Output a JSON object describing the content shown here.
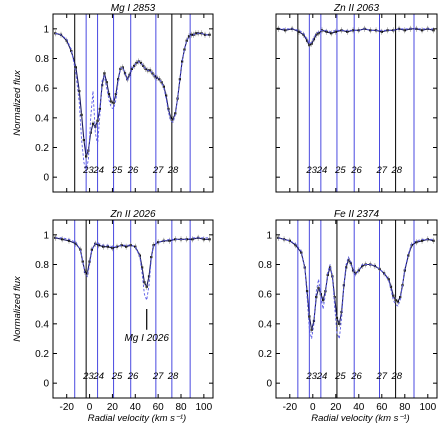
{
  "chart_data": [
    {
      "type": "line",
      "title": "Mg I 2853",
      "ylabel": "Normalized flux",
      "xlabel": "",
      "xlim": [
        -32,
        108
      ],
      "ylim": [
        -0.1,
        1.1
      ],
      "xticks": [],
      "yticks": [
        0,
        0.2,
        0.4,
        0.6,
        0.8,
        1
      ],
      "ytick_labels": [
        "0",
        "0.2",
        "0.4",
        "0.6",
        "0.8",
        "1"
      ],
      "component_lines": [
        {
          "x": -13,
          "color": "#000000"
        },
        {
          "x": -3,
          "color": "#4a4ae0"
        },
        {
          "x": 7,
          "color": "#4a4ae0"
        },
        {
          "x": 21,
          "color": "#4a4ae0"
        },
        {
          "x": 36,
          "color": "#4a4ae0"
        },
        {
          "x": 58,
          "color": "#4a4ae0"
        },
        {
          "x": 72,
          "color": "#000000"
        },
        {
          "x": 88,
          "color": "#4a4ae0"
        }
      ],
      "component_labels": [
        {
          "x": -1,
          "label": "23"
        },
        {
          "x": 8,
          "label": "24"
        },
        {
          "x": 24,
          "label": "25"
        },
        {
          "x": 38,
          "label": "26"
        },
        {
          "x": 60,
          "label": "27"
        },
        {
          "x": 73,
          "label": "28"
        }
      ],
      "component_label_y": 0.05,
      "annotation": null,
      "series": [
        {
          "role": "data",
          "x": [
            -30,
            -25,
            -20,
            -16,
            -12,
            -9,
            -7,
            -5,
            -3,
            -1,
            1,
            3,
            5,
            7,
            9,
            11,
            13,
            15,
            17,
            19,
            21,
            23,
            25,
            27,
            29,
            31,
            33,
            35,
            37,
            39,
            41,
            43,
            45,
            47,
            49,
            51,
            53,
            55,
            57,
            59,
            61,
            63,
            65,
            67,
            69,
            71,
            73,
            75,
            77,
            79,
            81,
            83,
            85,
            87,
            89,
            91,
            93,
            95,
            98,
            101,
            105
          ],
          "y": [
            0.97,
            0.96,
            0.92,
            0.85,
            0.74,
            0.58,
            0.42,
            0.25,
            0.14,
            0.18,
            0.3,
            0.36,
            0.34,
            0.38,
            0.46,
            0.62,
            0.7,
            0.64,
            0.56,
            0.51,
            0.5,
            0.56,
            0.66,
            0.73,
            0.74,
            0.7,
            0.66,
            0.69,
            0.73,
            0.75,
            0.77,
            0.78,
            0.77,
            0.75,
            0.73,
            0.72,
            0.72,
            0.7,
            0.68,
            0.67,
            0.66,
            0.64,
            0.61,
            0.55,
            0.46,
            0.4,
            0.39,
            0.43,
            0.53,
            0.66,
            0.78,
            0.86,
            0.92,
            0.95,
            0.96,
            0.96,
            0.97,
            0.97,
            0.97,
            0.96,
            0.96
          ]
        },
        {
          "role": "model",
          "x": [
            -30,
            -25,
            -20,
            -16,
            -12,
            -9,
            -7,
            -5,
            -3,
            -1,
            1,
            3,
            5,
            7,
            9,
            11,
            13,
            15,
            17,
            19,
            21,
            23,
            25,
            27,
            29,
            31,
            33,
            35,
            37,
            39,
            41,
            43,
            45,
            47,
            49,
            51,
            53,
            55,
            57,
            59,
            61,
            63,
            65,
            67,
            69,
            71,
            73,
            75,
            77,
            79,
            81,
            83,
            85,
            87,
            89,
            91,
            93,
            95,
            98,
            101,
            105
          ],
          "y": [
            0.97,
            0.96,
            0.93,
            0.86,
            0.7,
            0.5,
            0.25,
            0.1,
            0.04,
            0.12,
            0.4,
            0.58,
            0.3,
            0.22,
            0.42,
            0.65,
            0.68,
            0.6,
            0.52,
            0.47,
            0.46,
            0.52,
            0.64,
            0.73,
            0.74,
            0.7,
            0.65,
            0.68,
            0.73,
            0.75,
            0.77,
            0.78,
            0.77,
            0.75,
            0.73,
            0.72,
            0.72,
            0.7,
            0.68,
            0.67,
            0.66,
            0.64,
            0.6,
            0.53,
            0.44,
            0.38,
            0.37,
            0.42,
            0.53,
            0.66,
            0.78,
            0.86,
            0.92,
            0.95,
            0.96,
            0.96,
            0.97,
            0.97,
            0.97,
            0.96,
            0.96
          ]
        }
      ]
    },
    {
      "type": "line",
      "title": "Zn II 2063",
      "ylabel": "",
      "xlabel": "",
      "xlim": [
        -32,
        108
      ],
      "ylim": [
        -0.1,
        1.1
      ],
      "xticks": [],
      "yticks": [
        0,
        0.2,
        0.4,
        0.6,
        0.8,
        1
      ],
      "ytick_labels": [
        "",
        "",
        "",
        "",
        "",
        ""
      ],
      "component_lines": [
        {
          "x": -13,
          "color": "#000000"
        },
        {
          "x": -3,
          "color": "#4a4ae0"
        },
        {
          "x": 7,
          "color": "#4a4ae0"
        },
        {
          "x": 21,
          "color": "#4a4ae0"
        },
        {
          "x": 36,
          "color": "#4a4ae0"
        },
        {
          "x": 58,
          "color": "#4a4ae0"
        },
        {
          "x": 72,
          "color": "#000000"
        },
        {
          "x": 88,
          "color": "#4a4ae0"
        }
      ],
      "component_labels": [
        {
          "x": -1,
          "label": "23"
        },
        {
          "x": 8,
          "label": "24"
        },
        {
          "x": 24,
          "label": "25"
        },
        {
          "x": 38,
          "label": "26"
        },
        {
          "x": 60,
          "label": "27"
        },
        {
          "x": 73,
          "label": "28"
        }
      ],
      "component_label_y": 0.05,
      "annotation": null,
      "series": [
        {
          "role": "data",
          "x": [
            -30,
            -24,
            -18,
            -12,
            -8,
            -5,
            -3,
            -1,
            1,
            3,
            5,
            8,
            12,
            16,
            20,
            25,
            30,
            35,
            40,
            45,
            50,
            55,
            60,
            65,
            70,
            75,
            80,
            85,
            90,
            95,
            100,
            105
          ],
          "y": [
            1.0,
            0.99,
            1.0,
            0.98,
            0.96,
            0.92,
            0.89,
            0.9,
            0.93,
            0.96,
            0.97,
            0.99,
            0.98,
            0.97,
            0.98,
            0.99,
            0.98,
            0.99,
            0.99,
            1.0,
            0.99,
            0.99,
            0.98,
            0.99,
            0.99,
            1.0,
            0.99,
            1.0,
            1.0,
            0.99,
            1.0,
            0.99
          ]
        },
        {
          "role": "model",
          "x": [
            -30,
            -24,
            -18,
            -12,
            -8,
            -5,
            -3,
            -1,
            1,
            3,
            5,
            8,
            12,
            16,
            20,
            25,
            30,
            35,
            40,
            45,
            50,
            55,
            60,
            65,
            70,
            75,
            80,
            85,
            90,
            95,
            100,
            105
          ],
          "y": [
            1.0,
            1.0,
            1.0,
            0.99,
            0.97,
            0.93,
            0.9,
            0.91,
            0.94,
            0.97,
            0.98,
            0.99,
            0.99,
            0.98,
            0.99,
            0.99,
            0.99,
            0.99,
            0.99,
            1.0,
            0.99,
            0.99,
            0.99,
            0.99,
            0.99,
            1.0,
            1.0,
            1.0,
            1.0,
            1.0,
            1.0,
            1.0
          ]
        }
      ]
    },
    {
      "type": "line",
      "title": "Zn II 2026",
      "ylabel": "Normalized flux",
      "xlabel": "Radial velocity (km s⁻¹)",
      "xlim": [
        -32,
        108
      ],
      "ylim": [
        -0.1,
        1.1
      ],
      "xticks": [
        -20,
        0,
        20,
        40,
        60,
        80,
        100
      ],
      "yticks": [
        0,
        0.2,
        0.4,
        0.6,
        0.8,
        1
      ],
      "ytick_labels": [
        "0",
        "0.2",
        "0.4",
        "0.6",
        "0.8",
        "1"
      ],
      "component_lines": [
        {
          "x": -13,
          "color": "#4a4ae0"
        },
        {
          "x": -3,
          "color": "#000000"
        },
        {
          "x": 7,
          "color": "#4a4ae0"
        },
        {
          "x": 21,
          "color": "#4a4ae0"
        },
        {
          "x": 36,
          "color": "#4a4ae0"
        },
        {
          "x": 58,
          "color": "#4a4ae0"
        },
        {
          "x": 72,
          "color": "#4a4ae0"
        },
        {
          "x": 88,
          "color": "#4a4ae0"
        }
      ],
      "component_labels": [
        {
          "x": -1,
          "label": "23"
        },
        {
          "x": 8,
          "label": "24"
        },
        {
          "x": 24,
          "label": "25"
        },
        {
          "x": 38,
          "label": "26"
        },
        {
          "x": 60,
          "label": "27"
        },
        {
          "x": 73,
          "label": "28"
        }
      ],
      "component_label_y": 0.05,
      "annotation": {
        "text": "Mg I 2026",
        "x": 50,
        "line_top": 0.5,
        "line_bottom": 0.36,
        "label_y": 0.31
      },
      "series": [
        {
          "role": "data",
          "x": [
            -30,
            -24,
            -18,
            -12,
            -8,
            -6,
            -4,
            -2,
            0,
            2,
            5,
            8,
            12,
            16,
            20,
            24,
            28,
            32,
            36,
            40,
            44,
            46,
            48,
            50,
            52,
            54,
            56,
            60,
            65,
            70,
            75,
            80,
            85,
            90,
            95,
            100,
            105
          ],
          "y": [
            0.98,
            0.97,
            0.96,
            0.94,
            0.9,
            0.82,
            0.75,
            0.74,
            0.82,
            0.9,
            0.94,
            0.93,
            0.92,
            0.92,
            0.91,
            0.92,
            0.93,
            0.92,
            0.93,
            0.92,
            0.86,
            0.78,
            0.68,
            0.65,
            0.72,
            0.85,
            0.93,
            0.95,
            0.96,
            0.96,
            0.97,
            0.97,
            0.97,
            0.97,
            0.98,
            0.97,
            0.97
          ]
        },
        {
          "role": "model",
          "x": [
            -30,
            -24,
            -18,
            -12,
            -8,
            -6,
            -4,
            -2,
            0,
            2,
            5,
            8,
            12,
            16,
            20,
            24,
            28,
            32,
            36,
            40,
            44,
            46,
            48,
            50,
            52,
            54,
            56,
            60,
            65,
            70,
            75,
            80,
            85,
            90,
            95,
            100,
            105
          ],
          "y": [
            0.98,
            0.98,
            0.97,
            0.95,
            0.9,
            0.82,
            0.74,
            0.72,
            0.8,
            0.9,
            0.94,
            0.94,
            0.93,
            0.93,
            0.92,
            0.92,
            0.93,
            0.93,
            0.93,
            0.92,
            0.85,
            0.74,
            0.6,
            0.56,
            0.66,
            0.84,
            0.93,
            0.95,
            0.96,
            0.97,
            0.97,
            0.97,
            0.97,
            0.98,
            0.98,
            0.98,
            0.98
          ]
        }
      ]
    },
    {
      "type": "line",
      "title": "Fe II 2374",
      "ylabel": "",
      "xlabel": "Radial velocity (km s⁻¹)",
      "xlim": [
        -32,
        108
      ],
      "ylim": [
        -0.1,
        1.1
      ],
      "xticks": [
        -20,
        0,
        20,
        40,
        60,
        80,
        100
      ],
      "yticks": [
        0,
        0.2,
        0.4,
        0.6,
        0.8,
        1
      ],
      "ytick_labels": [
        "0",
        "0.2",
        "0.4",
        "0.6",
        "0.8",
        "1"
      ],
      "component_lines": [
        {
          "x": -13,
          "color": "#4a4ae0"
        },
        {
          "x": -3,
          "color": "#4a4ae0"
        },
        {
          "x": 7,
          "color": "#4a4ae0"
        },
        {
          "x": 21,
          "color": "#000000"
        },
        {
          "x": 36,
          "color": "#4a4ae0"
        },
        {
          "x": 58,
          "color": "#4a4ae0"
        },
        {
          "x": 72,
          "color": "#000000"
        },
        {
          "x": 88,
          "color": "#4a4ae0"
        }
      ],
      "component_labels": [
        {
          "x": -1,
          "label": "23"
        },
        {
          "x": 8,
          "label": "24"
        },
        {
          "x": 24,
          "label": "25"
        },
        {
          "x": 38,
          "label": "26"
        },
        {
          "x": 60,
          "label": "27"
        },
        {
          "x": 73,
          "label": "28"
        }
      ],
      "component_label_y": 0.05,
      "annotation": null,
      "series": [
        {
          "role": "data",
          "x": [
            -30,
            -25,
            -20,
            -15,
            -10,
            -7,
            -5,
            -3,
            -1,
            1,
            3,
            5,
            7,
            9,
            11,
            13,
            15,
            17,
            19,
            21,
            23,
            25,
            27,
            29,
            31,
            33,
            35,
            37,
            40,
            43,
            46,
            50,
            54,
            58,
            62,
            66,
            68,
            70,
            72,
            74,
            76,
            78,
            80,
            83,
            86,
            90,
            95,
            100,
            105
          ],
          "y": [
            0.98,
            0.97,
            0.96,
            0.93,
            0.88,
            0.78,
            0.62,
            0.45,
            0.36,
            0.42,
            0.58,
            0.64,
            0.6,
            0.56,
            0.62,
            0.73,
            0.78,
            0.72,
            0.58,
            0.44,
            0.4,
            0.48,
            0.66,
            0.78,
            0.83,
            0.81,
            0.76,
            0.74,
            0.76,
            0.79,
            0.8,
            0.8,
            0.79,
            0.77,
            0.74,
            0.7,
            0.65,
            0.59,
            0.56,
            0.55,
            0.58,
            0.66,
            0.76,
            0.86,
            0.93,
            0.95,
            0.96,
            0.97,
            0.96
          ]
        },
        {
          "role": "model",
          "x": [
            -30,
            -25,
            -20,
            -15,
            -10,
            -7,
            -5,
            -3,
            -1,
            1,
            3,
            5,
            7,
            9,
            11,
            13,
            15,
            17,
            19,
            21,
            23,
            25,
            27,
            29,
            31,
            33,
            35,
            37,
            40,
            43,
            46,
            50,
            54,
            58,
            62,
            66,
            68,
            70,
            72,
            74,
            76,
            78,
            80,
            83,
            86,
            90,
            95,
            100,
            105
          ],
          "y": [
            0.98,
            0.97,
            0.96,
            0.94,
            0.89,
            0.78,
            0.58,
            0.36,
            0.3,
            0.4,
            0.62,
            0.7,
            0.58,
            0.5,
            0.6,
            0.75,
            0.8,
            0.72,
            0.52,
            0.34,
            0.3,
            0.44,
            0.66,
            0.8,
            0.85,
            0.82,
            0.76,
            0.73,
            0.76,
            0.8,
            0.8,
            0.8,
            0.79,
            0.77,
            0.74,
            0.69,
            0.63,
            0.56,
            0.53,
            0.52,
            0.56,
            0.66,
            0.77,
            0.87,
            0.94,
            0.96,
            0.97,
            0.97,
            0.97
          ]
        }
      ]
    }
  ]
}
